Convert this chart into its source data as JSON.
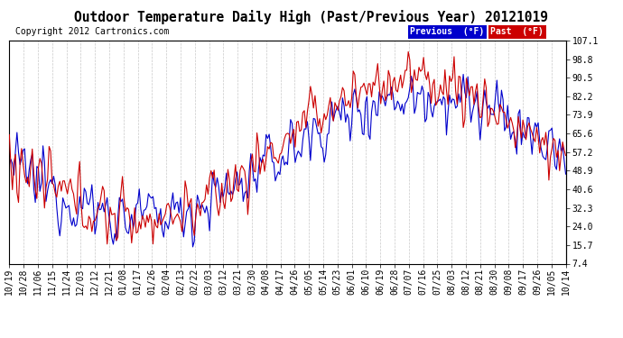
{
  "title": "Outdoor Temperature Daily High (Past/Previous Year) 20121019",
  "copyright": "Copyright 2012 Cartronics.com",
  "ylabel_right": [
    "107.1",
    "98.8",
    "90.5",
    "82.2",
    "73.9",
    "65.6",
    "57.2",
    "48.9",
    "40.6",
    "32.3",
    "24.0",
    "15.7",
    "7.4"
  ],
  "yvalues": [
    107.1,
    98.8,
    90.5,
    82.2,
    73.9,
    65.6,
    57.2,
    48.9,
    40.6,
    32.3,
    24.0,
    15.7,
    7.4
  ],
  "xlabels": [
    "10/19",
    "10/28",
    "11/06",
    "11/15",
    "11/24",
    "12/03",
    "12/12",
    "12/21",
    "01/08",
    "01/17",
    "01/26",
    "02/04",
    "02/13",
    "02/22",
    "03/03",
    "03/12",
    "03/21",
    "03/30",
    "04/08",
    "04/17",
    "04/26",
    "05/05",
    "05/14",
    "05/23",
    "06/01",
    "06/10",
    "06/19",
    "06/28",
    "07/07",
    "07/16",
    "07/25",
    "08/03",
    "08/12",
    "08/21",
    "08/30",
    "09/08",
    "09/17",
    "09/26",
    "10/05",
    "10/14"
  ],
  "bg_color": "#ffffff",
  "grid_color": "#bbbbbb",
  "line_color_blue": "#0000cc",
  "line_color_red": "#cc0000",
  "legend_prev_bg": "#0000cc",
  "legend_past_bg": "#cc0000",
  "title_fontsize": 10.5,
  "tick_fontsize": 7,
  "copyright_fontsize": 7,
  "ymin": 7.4,
  "ymax": 107.1
}
